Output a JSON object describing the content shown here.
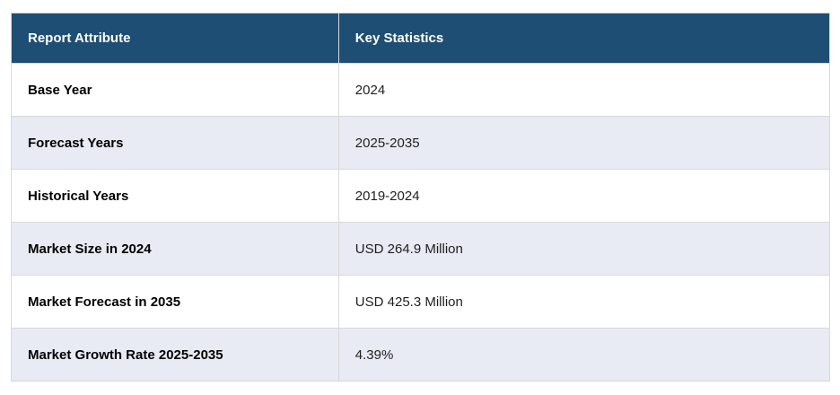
{
  "table": {
    "headers": {
      "attribute": "Report Attribute",
      "statistics": "Key Statistics"
    },
    "rows": [
      {
        "attribute": "Base Year",
        "value": "2024"
      },
      {
        "attribute": "Forecast Years",
        "value": "2025-2035"
      },
      {
        "attribute": "Historical Years",
        "value": "2019-2024"
      },
      {
        "attribute": "Market Size in 2024",
        "value": "USD 264.9 Million"
      },
      {
        "attribute": "Market Forecast in 2035",
        "value": "USD 425.3 Million"
      },
      {
        "attribute": "Market Growth Rate 2025-2035",
        "value": "4.39%"
      }
    ]
  },
  "colors": {
    "header_bg": "#1f4e74",
    "header_text": "#ffffff",
    "alt_row_bg": "#e8eaf4",
    "row_bg": "#ffffff",
    "border": "#d9d9d9",
    "attribute_text": "#000000",
    "value_text": "#1f1f1f"
  },
  "chart_data": {
    "type": "table",
    "columns": [
      "Report Attribute",
      "Key Statistics"
    ],
    "rows": [
      [
        "Base Year",
        "2024"
      ],
      [
        "Forecast Years",
        "2025-2035"
      ],
      [
        "Historical Years",
        "2019-2024"
      ],
      [
        "Market Size in 2024",
        "USD 264.9 Million"
      ],
      [
        "Market Forecast in 2035",
        "USD 425.3 Million"
      ],
      [
        "Market Growth Rate 2025-2035",
        "4.39%"
      ]
    ],
    "layout": {
      "header_style": "dark-blue bar, white bold text",
      "row_striping": "white / light-lavender alternating starting with white",
      "grid": "on"
    }
  }
}
